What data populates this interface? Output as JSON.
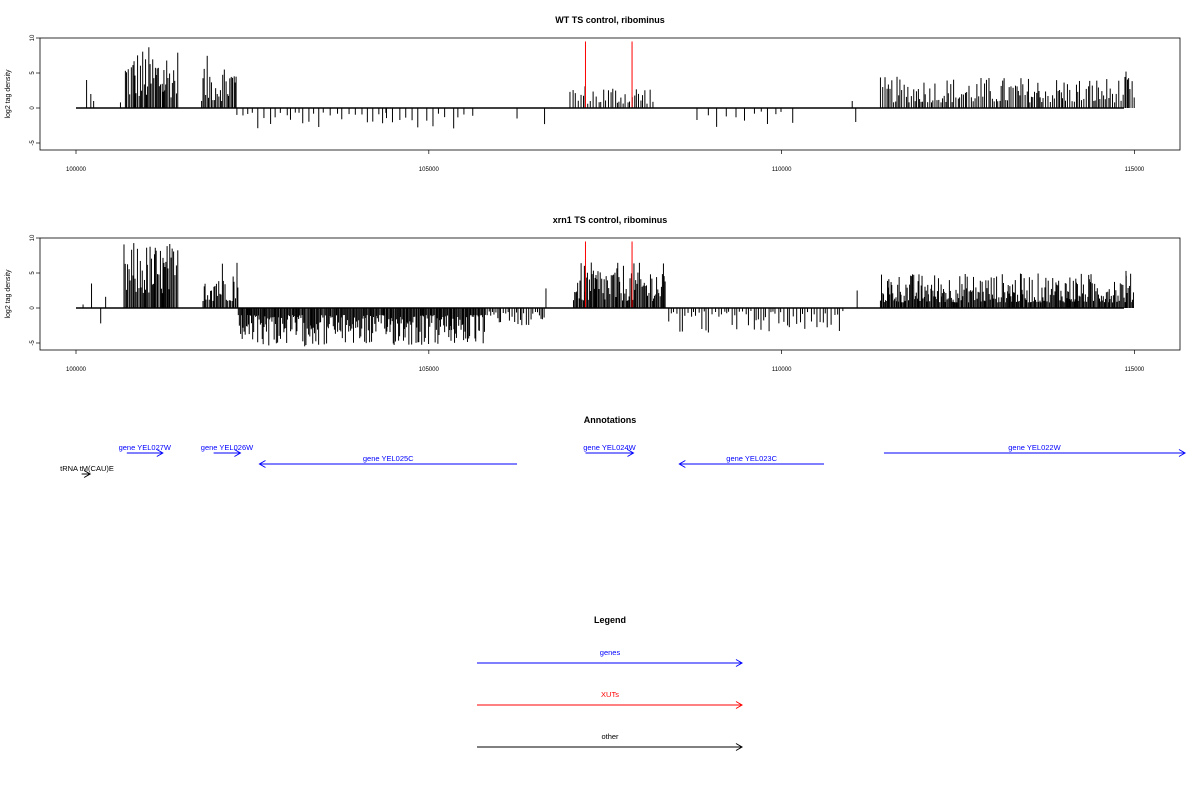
{
  "chart_data": [
    {
      "type": "bar",
      "title": "WT TS control, ribominus",
      "ylabel": "log2 tag density",
      "xlim": [
        100000,
        115050
      ],
      "ylim": [
        -6,
        10
      ],
      "yticks": [
        -5,
        0,
        5,
        10
      ],
      "xticks": [
        100000,
        105000,
        110000,
        115000
      ],
      "xtick_labels": [
        "100000",
        "105000",
        "110000",
        "115000"
      ],
      "bar_color": "#000000",
      "highlight_color": "#ff0000",
      "highlights": [
        {
          "x": 107220,
          "value": 9.5
        },
        {
          "x": 107880,
          "value": 9.5
        }
      ],
      "blocks": [
        {
          "x0": 100700,
          "x1": 101450,
          "step": 18,
          "min": 1.5,
          "max": 9.0,
          "sign": 1
        },
        {
          "x0": 101780,
          "x1": 102280,
          "step": 18,
          "min": 1.0,
          "max": 7.5,
          "sign": 1
        },
        {
          "x0": 102280,
          "x1": 104400,
          "step": 75,
          "min": 0.6,
          "max": 3.0,
          "sign": -1
        },
        {
          "x0": 104400,
          "x1": 105700,
          "step": 95,
          "min": 0.8,
          "max": 3.0,
          "sign": -1
        },
        {
          "x0": 107000,
          "x1": 108200,
          "step": 32,
          "min": 0.6,
          "max": 3.5,
          "sign": 1
        },
        {
          "x0": 108800,
          "x1": 110200,
          "step": 120,
          "min": 0.5,
          "max": 2.8,
          "sign": -1
        },
        {
          "x0": 111400,
          "x1": 115000,
          "step": 26,
          "min": 0.8,
          "max": 4.5,
          "sign": 1
        }
      ],
      "singles": [
        {
          "x": 100150,
          "value": 4.0
        },
        {
          "x": 100210,
          "value": 2.0
        },
        {
          "x": 100250,
          "value": 1.0
        },
        {
          "x": 100630,
          "value": 0.8
        },
        {
          "x": 106640,
          "value": -2.3
        },
        {
          "x": 106250,
          "value": -1.5
        },
        {
          "x": 111000,
          "value": 1.0
        },
        {
          "x": 111050,
          "value": -2.0
        },
        {
          "x": 114880,
          "value": 5.2
        }
      ]
    },
    {
      "type": "bar",
      "title": "xrn1 TS control, ribominus",
      "ylabel": "log2 tag density",
      "xlim": [
        100000,
        115050
      ],
      "ylim": [
        -6,
        10
      ],
      "yticks": [
        -5,
        0,
        5,
        10
      ],
      "xticks": [
        100000,
        105000,
        110000,
        115000
      ],
      "xtick_labels": [
        "100000",
        "105000",
        "110000",
        "115000"
      ],
      "bar_color": "#000000",
      "highlight_color": "#ff0000",
      "highlights": [
        {
          "x": 107220,
          "value": 9.5
        },
        {
          "x": 107880,
          "value": 9.5
        }
      ],
      "blocks": [
        {
          "x0": 100680,
          "x1": 101450,
          "step": 16,
          "min": 2.0,
          "max": 9.5,
          "sign": 1
        },
        {
          "x0": 101800,
          "x1": 102300,
          "step": 18,
          "min": 1.0,
          "max": 7.5,
          "sign": 1
        },
        {
          "x0": 102300,
          "x1": 105800,
          "step": 14,
          "min": 1.0,
          "max": 5.5,
          "sign": -1
        },
        {
          "x0": 105800,
          "x1": 106650,
          "step": 28,
          "min": 0.5,
          "max": 2.5,
          "sign": -1
        },
        {
          "x0": 107050,
          "x1": 108350,
          "step": 16,
          "min": 1.0,
          "max": 6.5,
          "sign": 1
        },
        {
          "x0": 108400,
          "x1": 110900,
          "step": 40,
          "min": 0.4,
          "max": 3.6,
          "sign": -1
        },
        {
          "x0": 111400,
          "x1": 115000,
          "step": 14,
          "min": 0.8,
          "max": 5.0,
          "sign": 1
        }
      ],
      "singles": [
        {
          "x": 100100,
          "value": 0.5
        },
        {
          "x": 100220,
          "value": 3.5
        },
        {
          "x": 100350,
          "value": -2.2
        },
        {
          "x": 100420,
          "value": 1.6
        },
        {
          "x": 106660,
          "value": 2.8
        },
        {
          "x": 111070,
          "value": 2.5
        },
        {
          "x": 114880,
          "value": 5.3
        }
      ]
    }
  ],
  "annotations": {
    "title": "Annotations",
    "features": [
      {
        "label": "gene YEL027W",
        "x0": 100720,
        "x1": 101230,
        "strand": "+",
        "row": 0,
        "color": "#0000ff"
      },
      {
        "label": "gene YEL026W",
        "x0": 101950,
        "x1": 102330,
        "strand": "+",
        "row": 0,
        "color": "#0000ff"
      },
      {
        "label": "gene YEL025C",
        "x0": 102600,
        "x1": 106250,
        "strand": "-",
        "row": 1,
        "color": "#0000ff"
      },
      {
        "label": "gene YEL024W",
        "x0": 107220,
        "x1": 107900,
        "strand": "+",
        "row": 0,
        "color": "#0000ff"
      },
      {
        "label": "gene YEL023C",
        "x0": 108550,
        "x1": 110600,
        "strand": "-",
        "row": 1,
        "color": "#0000ff"
      },
      {
        "label": "gene YEL022W",
        "x0": 111450,
        "x1": 115800,
        "strand": "+",
        "row": 0,
        "color": "#0000ff"
      },
      {
        "label": "tRNA tM(CAU)E",
        "x0": 100080,
        "x1": 100200,
        "strand": "+",
        "row": 2,
        "color": "#000000"
      }
    ]
  },
  "legend": {
    "title": "Legend",
    "items": [
      {
        "label": "genes",
        "color": "#0000ff"
      },
      {
        "label": "XUTs",
        "color": "#ff0000"
      },
      {
        "label": "other",
        "color": "#000000"
      }
    ]
  }
}
